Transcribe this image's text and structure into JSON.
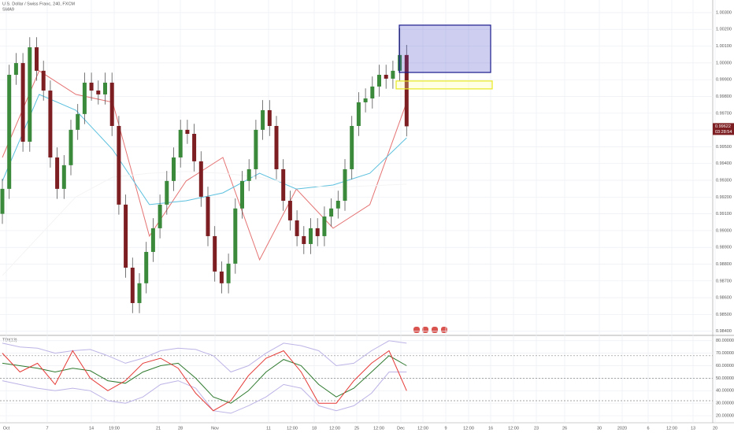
{
  "chart_data": [
    {
      "type": "candlestick",
      "title": "U.S. Dollar / Swiss Franc, 240, FXCM",
      "subtitle": "SMA9",
      "up_color": "#3b8a3b",
      "down_color": "#7d1f22",
      "candles": {
        "open": [
          0.991,
          0.99249,
          0.99929,
          0.99999,
          0.9953,
          1.00093,
          0.99953,
          0.99835,
          0.99436,
          0.99249,
          0.9939,
          0.99601,
          0.99695,
          0.99882,
          0.99835,
          0.99812,
          0.99882,
          0.99624,
          0.99155,
          0.98779,
          0.98568,
          0.98686,
          0.98873,
          0.99014,
          0.99155,
          0.99296,
          0.99436,
          0.99601,
          0.99577,
          0.99413,
          0.99202,
          0.98967,
          0.98756,
          0.98686,
          0.98803,
          0.99132,
          0.99296,
          0.99366,
          0.99601,
          0.99718,
          0.99624,
          0.99366,
          0.99178,
          0.99061,
          0.98967,
          0.9892,
          0.99014,
          0.98967,
          0.99084,
          0.99132,
          0.99178,
          0.99366,
          0.99624,
          0.99765,
          0.99788,
          0.99859,
          0.99929,
          0.99906,
          0.99953,
          1.00047
        ],
        "high": [
          0.99309,
          0.99989,
          1.00059,
          1.00059,
          1.00153,
          1.00153,
          1.00013,
          0.99895,
          0.99496,
          0.9945,
          0.99661,
          0.99755,
          0.99942,
          0.99942,
          0.99895,
          0.99942,
          0.99942,
          0.99684,
          0.99215,
          0.98839,
          0.98746,
          0.98933,
          0.99074,
          0.99215,
          0.99356,
          0.99496,
          0.99661,
          0.99661,
          0.99637,
          0.99473,
          0.99262,
          0.99027,
          0.98816,
          0.98863,
          0.99192,
          0.99356,
          0.99426,
          0.99661,
          0.99778,
          0.99778,
          0.99684,
          0.99426,
          0.99238,
          0.99121,
          0.99027,
          0.99074,
          0.99074,
          0.99144,
          0.99192,
          0.99238,
          0.99426,
          0.99684,
          0.99825,
          0.99848,
          0.99919,
          0.99989,
          0.99989,
          1.00013,
          1.00207,
          1.00107
        ],
        "low": [
          0.9904,
          0.99189,
          0.99869,
          0.9947,
          0.9947,
          0.99893,
          0.99775,
          0.99376,
          0.99189,
          0.99189,
          0.9933,
          0.99541,
          0.99635,
          0.99775,
          0.99752,
          0.99752,
          0.99564,
          0.99095,
          0.98719,
          0.98508,
          0.98508,
          0.98626,
          0.98813,
          0.98954,
          0.99095,
          0.99236,
          0.99376,
          0.99517,
          0.99353,
          0.99142,
          0.98907,
          0.98696,
          0.98626,
          0.98626,
          0.98743,
          0.99072,
          0.99236,
          0.99306,
          0.99541,
          0.99564,
          0.99306,
          0.99118,
          0.99001,
          0.98907,
          0.9886,
          0.9886,
          0.98907,
          0.98907,
          0.99024,
          0.99072,
          0.99118,
          0.99306,
          0.99564,
          0.99705,
          0.99728,
          0.99799,
          0.99846,
          0.99846,
          0.99893,
          0.99562
        ],
        "close": [
          0.99249,
          0.99929,
          0.99999,
          0.9953,
          1.00093,
          0.99953,
          0.99835,
          0.99436,
          0.99249,
          0.9939,
          0.99601,
          0.99695,
          0.99882,
          0.99835,
          0.99812,
          0.99882,
          0.99624,
          0.99155,
          0.98779,
          0.98568,
          0.98686,
          0.98873,
          0.99014,
          0.99155,
          0.99296,
          0.99436,
          0.99601,
          0.99577,
          0.99413,
          0.99202,
          0.98967,
          0.98756,
          0.98686,
          0.98803,
          0.99132,
          0.99296,
          0.99366,
          0.99601,
          0.99718,
          0.99624,
          0.99366,
          0.99178,
          0.99061,
          0.98967,
          0.9892,
          0.99014,
          0.98967,
          0.99084,
          0.99132,
          0.99178,
          0.99366,
          0.99624,
          0.99765,
          0.99788,
          0.99859,
          0.99929,
          0.99906,
          0.99953,
          1.00047,
          0.99622
        ]
      },
      "series": [
        {
          "color": "#e57373",
          "values": [
            0.99436,
            0.99953,
            0.99812,
            0.99765,
            0.98967,
            0.99296,
            0.99436,
            0.98826,
            0.99248,
            0.99014,
            0.99155,
            0.99765
          ]
        },
        {
          "color": "#5bc0de",
          "values": [
            0.99295,
            0.99812,
            0.99718,
            0.99483,
            0.99155,
            0.99178,
            0.99225,
            0.99342,
            0.99248,
            0.99272,
            0.99342,
            0.99553
          ]
        },
        {
          "color": "#f4f4f4",
          "values": [
            0.98732,
            0.98967,
            0.99201,
            0.99319,
            0.99342,
            0.99352,
            0.99342,
            0.99319,
            0.99272,
            0.99258,
            0.99267,
            0.99277
          ]
        }
      ],
      "zones": [
        {
          "color": "#1a1a8c",
          "fill": "rgba(60,60,200,0.25)",
          "top": 1.00225,
          "bottom": 0.99943
        },
        {
          "color": "#e8e820",
          "fill": "rgba(255,255,150,0.25)",
          "top": 0.99892,
          "bottom": 0.99845
        }
      ],
      "countdown": "03:28:54",
      "ylim": [
        0.9838,
        1.00375
      ],
      "yticks": [
        {
          "value": 1.003,
          "label": "1.00300"
        },
        {
          "value": 1.002,
          "label": "1.00200"
        },
        {
          "value": 1.001,
          "label": "1.00100"
        },
        {
          "value": 1.0,
          "label": "1.00000"
        },
        {
          "value": 0.999,
          "label": "0.99900"
        },
        {
          "value": 0.998,
          "label": "0.99800"
        },
        {
          "value": 0.997,
          "label": "0.99700"
        },
        {
          "value": 0.996,
          "label": "0.99600"
        },
        {
          "value": 0.995,
          "label": "0.99500"
        },
        {
          "value": 0.994,
          "label": "0.99400"
        },
        {
          "value": 0.993,
          "label": "0.99300"
        },
        {
          "value": 0.992,
          "label": "0.99200"
        },
        {
          "value": 0.991,
          "label": "0.99100"
        },
        {
          "value": 0.99,
          "label": "0.99000"
        },
        {
          "value": 0.989,
          "label": "0.98900"
        },
        {
          "value": 0.988,
          "label": "0.98800"
        },
        {
          "value": 0.987,
          "label": "0.98700"
        },
        {
          "value": 0.986,
          "label": "0.98600"
        },
        {
          "value": 0.985,
          "label": "0.98500"
        },
        {
          "value": 0.984,
          "label": "0.98400"
        }
      ],
      "x_labels": [
        "Oct",
        "7",
        "14",
        "19:00",
        "21",
        "28",
        "Nov",
        "11",
        "12:00",
        "18",
        "12:00",
        "25",
        "12:00",
        "Dec",
        "12:00",
        "9",
        "12:00",
        "16",
        "12:00",
        "23",
        "26",
        "30",
        "2020",
        "6",
        "12:00",
        "13",
        "20"
      ],
      "grid": true
    },
    {
      "type": "line",
      "title": "TDI(13)",
      "series": [
        {
          "color": "#bdb3e6",
          "values": [
            78,
            75,
            74,
            70,
            72,
            73,
            68,
            62,
            66,
            72,
            74,
            73,
            68,
            55,
            60,
            70,
            78,
            76,
            72,
            60,
            62,
            72,
            80,
            78
          ]
        },
        {
          "color": "#bdb3e6",
          "values": [
            48,
            45,
            42,
            40,
            42,
            40,
            32,
            30,
            35,
            45,
            48,
            42,
            24,
            22,
            28,
            35,
            45,
            42,
            28,
            24,
            28,
            38,
            55,
            55
          ]
        },
        {
          "color": "#2f7a2f",
          "values": [
            62,
            60,
            58,
            55,
            58,
            56,
            48,
            46,
            55,
            60,
            62,
            50,
            35,
            30,
            40,
            55,
            65,
            60,
            45,
            35,
            42,
            55,
            68,
            60
          ]
        },
        {
          "color": "#e53935",
          "values": [
            70,
            55,
            62,
            45,
            72,
            50,
            40,
            48,
            62,
            66,
            58,
            38,
            24,
            32,
            52,
            66,
            72,
            55,
            30,
            30,
            48,
            62,
            72,
            40
          ]
        }
      ],
      "levels": [
        68,
        50,
        32
      ],
      "ylim": [
        15,
        83
      ],
      "yticks": [
        {
          "value": 80,
          "label": "80.00000"
        },
        {
          "value": 70,
          "label": "70.00000"
        },
        {
          "value": 60,
          "label": "60.00000"
        },
        {
          "value": 50,
          "label": "50.00000"
        },
        {
          "value": 40,
          "label": "40.00000"
        },
        {
          "value": 30,
          "label": "30.00000"
        },
        {
          "value": 20,
          "label": "20.00000"
        }
      ],
      "grid": true
    }
  ]
}
